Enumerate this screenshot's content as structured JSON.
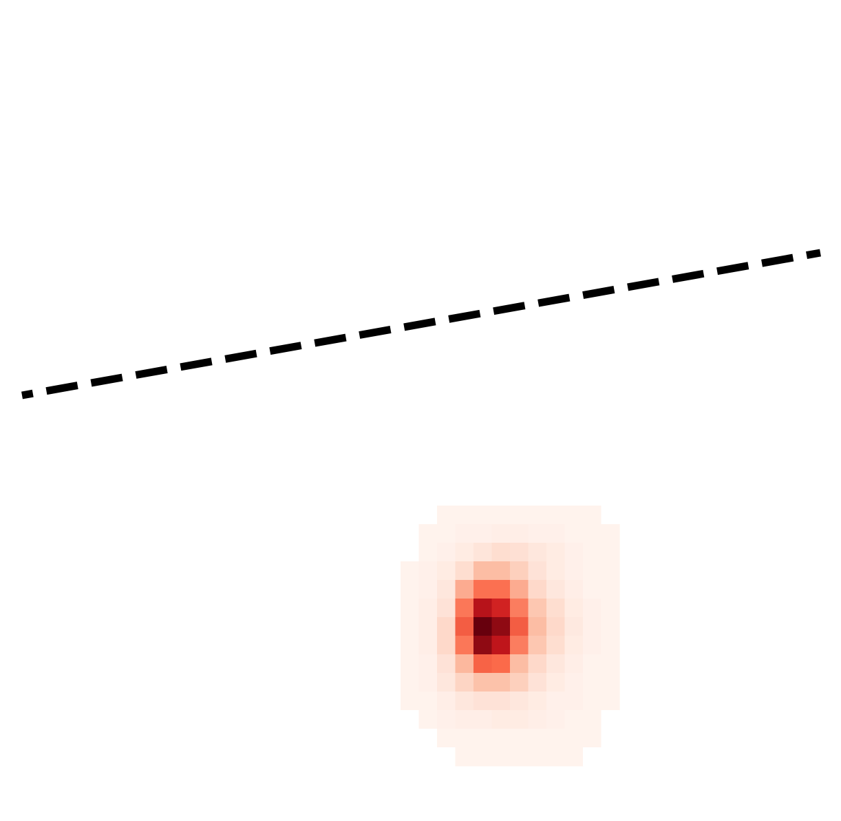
{
  "chart_data": {
    "type": "heatmap",
    "title": "",
    "xlabel": "",
    "ylabel": "",
    "axes_visible": false,
    "grid": false,
    "legend": "none",
    "colormap": "Reds",
    "colormap_stops": [
      "#fff5f0",
      "#fcbba1",
      "#fb6a4a",
      "#cb181d",
      "#67000d"
    ],
    "heatmap": {
      "rows": 14,
      "cols": 12,
      "value_range": [
        0,
        1
      ],
      "values": [
        [
          0,
          0,
          0.01,
          0.01,
          0.01,
          0.01,
          0.01,
          0.01,
          0.01,
          0.01,
          0.01,
          0
        ],
        [
          0,
          0.01,
          0.01,
          0.02,
          0.02,
          0.03,
          0.03,
          0.02,
          0.02,
          0.01,
          0.01,
          0.01
        ],
        [
          0,
          0.01,
          0.02,
          0.04,
          0.07,
          0.1,
          0.09,
          0.06,
          0.04,
          0.02,
          0.01,
          0.01
        ],
        [
          0.01,
          0.02,
          0.04,
          0.1,
          0.24,
          0.24,
          0.16,
          0.08,
          0.04,
          0.02,
          0.01,
          0.01
        ],
        [
          0.01,
          0.02,
          0.06,
          0.3,
          0.48,
          0.48,
          0.3,
          0.12,
          0.06,
          0.03,
          0.01,
          0.01
        ],
        [
          0.01,
          0.03,
          0.08,
          0.46,
          0.8,
          0.72,
          0.44,
          0.2,
          0.1,
          0.04,
          0.02,
          0.01
        ],
        [
          0.01,
          0.03,
          0.12,
          0.54,
          1.0,
          0.9,
          0.54,
          0.24,
          0.12,
          0.05,
          0.02,
          0.01
        ],
        [
          0.01,
          0.03,
          0.12,
          0.46,
          0.9,
          0.78,
          0.44,
          0.2,
          0.1,
          0.04,
          0.02,
          0.01
        ],
        [
          0.01,
          0.02,
          0.08,
          0.26,
          0.52,
          0.5,
          0.24,
          0.12,
          0.06,
          0.03,
          0.01,
          0.01
        ],
        [
          0.01,
          0.02,
          0.06,
          0.14,
          0.22,
          0.22,
          0.16,
          0.08,
          0.04,
          0.02,
          0.01,
          0.01
        ],
        [
          0.01,
          0.01,
          0.03,
          0.06,
          0.08,
          0.08,
          0.06,
          0.04,
          0.02,
          0.02,
          0.01,
          0.01
        ],
        [
          0,
          0.01,
          0.02,
          0.03,
          0.03,
          0.04,
          0.04,
          0.03,
          0.02,
          0.01,
          0.01,
          0
        ],
        [
          0,
          0,
          0.01,
          0.01,
          0.01,
          0.01,
          0.01,
          0.01,
          0.01,
          0.01,
          0.01,
          0
        ],
        [
          0,
          0,
          0,
          0.01,
          0.01,
          0.01,
          0.01,
          0.01,
          0.01,
          0.01,
          0,
          0
        ]
      ]
    },
    "line": {
      "style": "dashed",
      "color": "#000000",
      "x": [
        0,
        1
      ],
      "y": [
        0,
        0.17
      ]
    }
  }
}
